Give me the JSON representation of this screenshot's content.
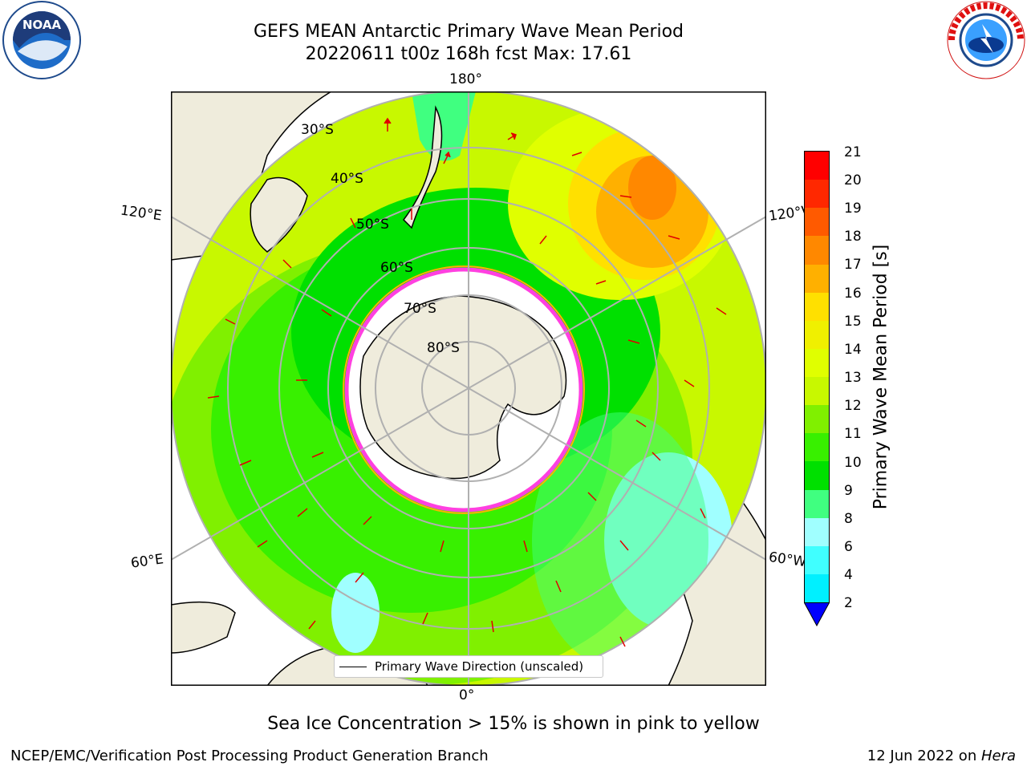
{
  "title": {
    "line1": "GEFS MEAN Antarctic Primary Wave Mean Period",
    "line2": "20220611 t00z 168h fcst   Max: 17.61"
  },
  "map": {
    "projection": "south-polar-stereographic",
    "longitude_labels": {
      "top": "180°",
      "bottom": "0°",
      "left_upper": "120°E",
      "left_lower": "60°E",
      "right_upper": "120°W",
      "right_lower": "60°W"
    },
    "latitude_labels": [
      "30°S",
      "40°S",
      "50°S",
      "60°S",
      "70°S",
      "80°S"
    ],
    "legend_label": "Primary Wave Direction (unscaled)",
    "colors": {
      "land": "#efecdc",
      "ice": "#ffffff",
      "ocean_green": "#30e030",
      "ocean_light": "#d8f000"
    }
  },
  "colorbar": {
    "label": "Primary Wave Mean Period [s]",
    "ticks": [
      "21",
      "20",
      "19",
      "18",
      "17",
      "16",
      "15",
      "14",
      "13",
      "12",
      "11",
      "10",
      "9",
      "8",
      "6",
      "4",
      "2"
    ],
    "colors_top_to_bottom": [
      "#ff0000",
      "#ff2800",
      "#ff5a00",
      "#ff8800",
      "#ffb000",
      "#ffe000",
      "#f0f000",
      "#e0ff00",
      "#c8f800",
      "#80f000",
      "#38f000",
      "#00e000",
      "#40ff80",
      "#a0ffff",
      "#40ffff",
      "#00f0ff",
      "#0080ff"
    ],
    "extend_color": "#0000ff"
  },
  "caption": "Sea Ice Concentration > 15% is shown in pink to yellow",
  "footer": {
    "left": "NCEP/EMC/Verification Post Processing Product Generation Branch",
    "date": "12 Jun 2022 on ",
    "machine": "Hera"
  }
}
